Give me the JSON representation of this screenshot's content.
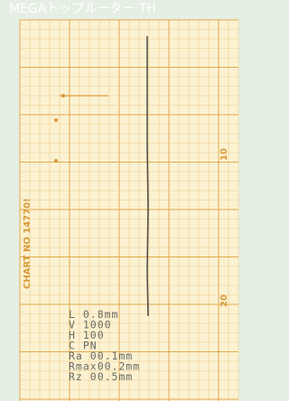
{
  "header": {
    "title": "MEGAトップルーター TH"
  },
  "chart": {
    "chart_no": "CHART NO 14770!",
    "scale_labels": [
      "10",
      "20"
    ],
    "readings": [
      "L  0.8mm",
      "V  1000",
      "H  100",
      "C  PN",
      "Ra   00.1mm",
      "Rmax00.2mm",
      "Rz   00.5mm"
    ]
  }
}
